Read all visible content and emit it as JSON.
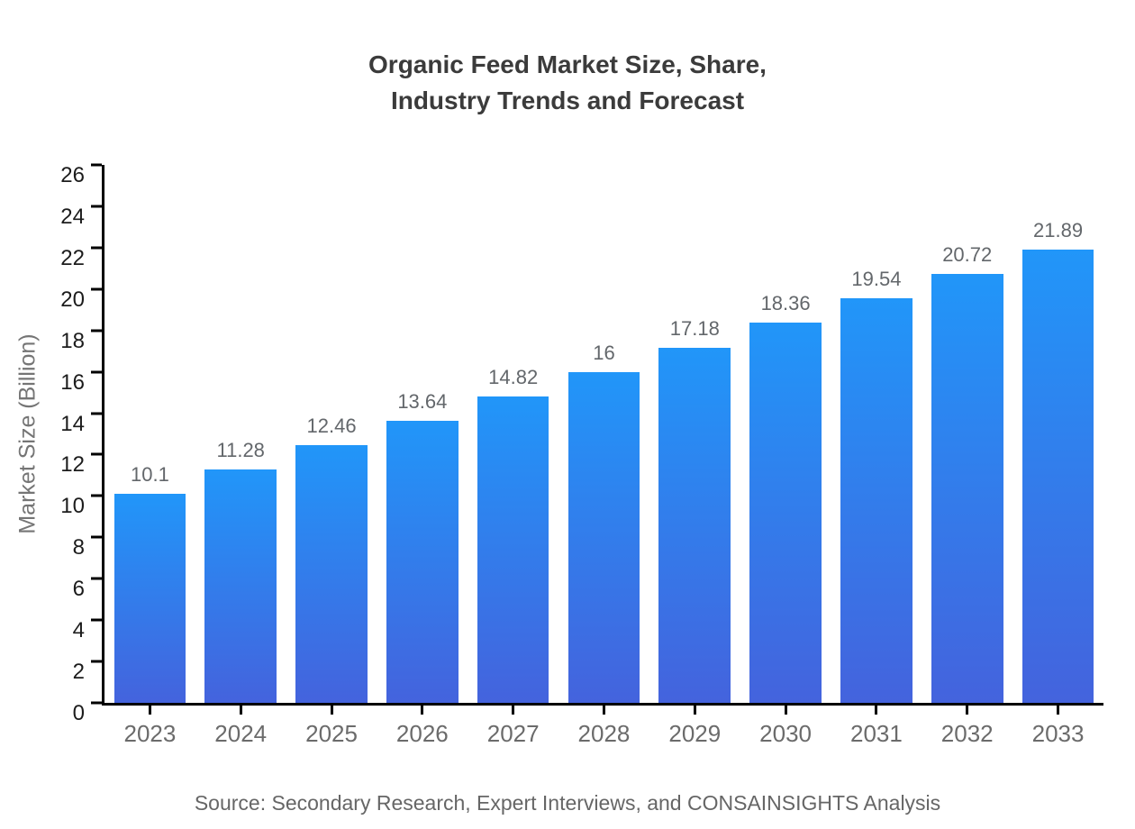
{
  "title": {
    "line1": "Organic Feed Market Size, Share,",
    "line2": "Industry Trends and Forecast"
  },
  "source_text": "Source: Secondary Research, Expert Interviews, and CONSAINSIGHTS Analysis",
  "chart_data": {
    "type": "bar",
    "title": "Organic Feed Market Size, Share, Industry Trends and Forecast",
    "categories": [
      "2023",
      "2024",
      "2025",
      "2026",
      "2027",
      "2028",
      "2029",
      "2030",
      "2031",
      "2032",
      "2033"
    ],
    "values": [
      10.1,
      11.28,
      12.46,
      13.64,
      14.82,
      16,
      17.18,
      18.36,
      19.54,
      20.72,
      21.89
    ],
    "value_labels": [
      "10.1",
      "11.28",
      "12.46",
      "13.64",
      "14.82",
      "16",
      "17.18",
      "18.36",
      "19.54",
      "20.72",
      "21.89"
    ],
    "xlabel": "",
    "ylabel": "Market Size (Billion)",
    "ylim": [
      0,
      26
    ],
    "ytick_step": 2,
    "ytick_labels": [
      "0",
      "2",
      "4",
      "6",
      "8",
      "10",
      "12",
      "14",
      "16",
      "18",
      "20",
      "22",
      "24",
      "26"
    ],
    "grid": false,
    "legend": "none",
    "colors": {
      "bar_gradient_top": "#2196f9",
      "bar_gradient_bottom": "#4463dd",
      "axis_line": "#000000",
      "ytick_text": "#1c1c1c",
      "xtick_text": "#6b6b6b",
      "value_label_text": "#63676b",
      "title_text": "#3b3b3b",
      "ylabel_text": "#757575",
      "source_text": "#666666"
    }
  }
}
